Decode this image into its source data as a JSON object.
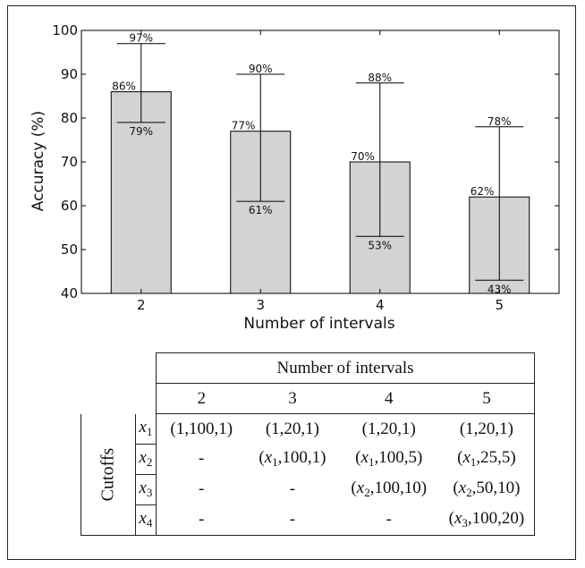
{
  "chart_data": {
    "type": "bar",
    "categories": [
      "2",
      "3",
      "4",
      "5"
    ],
    "values": [
      86,
      77,
      70,
      62
    ],
    "error_high": [
      97,
      90,
      88,
      78
    ],
    "error_low": [
      79,
      61,
      53,
      43
    ],
    "value_labels": [
      "86%",
      "77%",
      "70%",
      "62%"
    ],
    "high_labels": [
      "97%",
      "90%",
      "88%",
      "78%"
    ],
    "low_labels": [
      "79%",
      "61%",
      "53%",
      "43%"
    ],
    "xlabel": "Number of intervals",
    "ylabel": "Accuracy (%)",
    "ylim": [
      40,
      100
    ],
    "yticks": [
      40,
      50,
      60,
      70,
      80,
      90,
      100
    ],
    "bar_color": "#d3d3d3",
    "grid": false
  },
  "table": {
    "header": "Number of intervals",
    "columns": [
      "2",
      "3",
      "4",
      "5"
    ],
    "row_group_label": "Cutoffs",
    "rows": [
      {
        "var": "x",
        "sub": "1",
        "cells": [
          {
            "pre": "(1,100,1)"
          },
          {
            "pre": "(1,20,1)"
          },
          {
            "pre": "(1,20,1)"
          },
          {
            "pre": "(1,20,1)"
          }
        ]
      },
      {
        "var": "x",
        "sub": "2",
        "cells": [
          {
            "pre": "-"
          },
          {
            "pre": "(",
            "var": "x",
            "sub": "1",
            "post": ",100,1)"
          },
          {
            "pre": "(",
            "var": "x",
            "sub": "1",
            "post": ",100,5)"
          },
          {
            "pre": "(",
            "var": "x",
            "sub": "1",
            "post": ",25,5)"
          }
        ]
      },
      {
        "var": "x",
        "sub": "3",
        "cells": [
          {
            "pre": "-"
          },
          {
            "pre": "-"
          },
          {
            "pre": "(",
            "var": "x",
            "sub": "2",
            "post": ",100,10)"
          },
          {
            "pre": "(",
            "var": "x",
            "sub": "2",
            "post": ",50,10)"
          }
        ]
      },
      {
        "var": "x",
        "sub": "4",
        "cells": [
          {
            "pre": "-"
          },
          {
            "pre": "-"
          },
          {
            "pre": "-"
          },
          {
            "pre": "(",
            "var": "x",
            "sub": "3",
            "post": ",100,20)"
          }
        ]
      }
    ]
  }
}
